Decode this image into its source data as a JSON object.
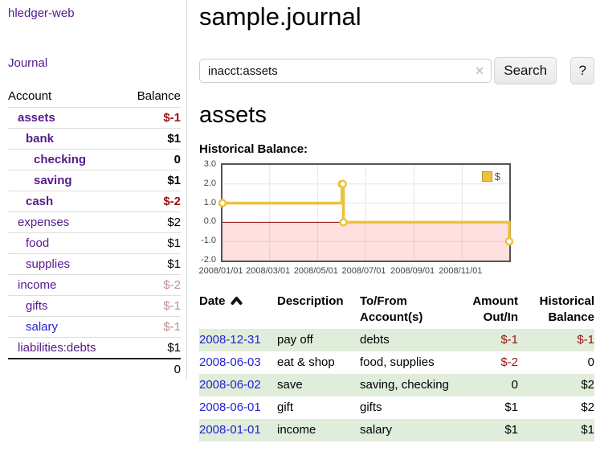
{
  "app": {
    "brand": "hledger-web",
    "nav_journal": "Journal"
  },
  "header": {
    "title": "sample.journal"
  },
  "search": {
    "value": "inacct:assets",
    "clear_icon": "✕",
    "search_label": "Search",
    "help_label": "?"
  },
  "sidebar": {
    "columns": {
      "account": "Account",
      "balance": "Balance"
    },
    "accounts": [
      {
        "name": "assets",
        "depth": 1,
        "balance": "$-1",
        "bold": true,
        "balance_style": "neg"
      },
      {
        "name": "bank",
        "depth": 2,
        "balance": "$1",
        "bold": true,
        "balance_style": "normal"
      },
      {
        "name": "checking",
        "depth": 3,
        "balance": "0",
        "bold": true,
        "balance_style": "normal"
      },
      {
        "name": "saving",
        "depth": 3,
        "balance": "$1",
        "bold": true,
        "balance_style": "normal"
      },
      {
        "name": "cash",
        "depth": 2,
        "balance": "$-2",
        "bold": true,
        "balance_style": "neg"
      },
      {
        "name": "expenses",
        "depth": 1,
        "balance": "$2",
        "bold": false,
        "balance_style": "normal"
      },
      {
        "name": "food",
        "depth": 2,
        "balance": "$1",
        "bold": false,
        "balance_style": "normal"
      },
      {
        "name": "supplies",
        "depth": 2,
        "balance": "$1",
        "bold": false,
        "balance_style": "normal"
      },
      {
        "name": "income",
        "depth": 1,
        "balance": "$-2",
        "bold": false,
        "balance_style": "neg-dim"
      },
      {
        "name": "gifts",
        "depth": 2,
        "balance": "$-1",
        "bold": false,
        "balance_style": "neg-dim"
      },
      {
        "name": "salary",
        "depth": 2,
        "balance": "$-1",
        "bold": false,
        "balance_style": "neg-dim",
        "link_style": "blue"
      },
      {
        "name": "liabilities:debts",
        "depth": 1,
        "balance": "$1",
        "bold": false,
        "balance_style": "normal"
      }
    ],
    "total": "0"
  },
  "account_page": {
    "heading": "assets",
    "chart_title": "Historical Balance:"
  },
  "chart_data": {
    "type": "line",
    "step": true,
    "title": "Historical Balance",
    "x_range": [
      "2008-01-01",
      "2008-12-31"
    ],
    "y_range": [
      -2,
      3
    ],
    "series": [
      {
        "name": "$",
        "color": "#edc240",
        "points": [
          [
            "2008-01-01",
            1
          ],
          [
            "2008-06-01",
            2
          ],
          [
            "2008-06-02",
            2
          ],
          [
            "2008-06-03",
            0
          ],
          [
            "2008-12-31",
            -1
          ]
        ]
      }
    ],
    "y_ticks": [
      "3.0",
      "2.0",
      "1.0",
      "0.0",
      "-1.0",
      "-2.0"
    ],
    "x_ticks": [
      "2008/01/01",
      "2008/03/01",
      "2008/05/01",
      "2008/07/01",
      "2008/09/01",
      "2008/11/01"
    ],
    "legend": {
      "label": "$",
      "position": "top-right"
    },
    "grid": true,
    "colors": {
      "line": "#edc240",
      "negative_fill": "rgba(255,0,0,0.12)",
      "zero_line": "#8b0000",
      "grid": "#e6e6e6",
      "border": "#555555"
    }
  },
  "register": {
    "columns": {
      "date": "Date",
      "description": "Description",
      "accounts": "To/From Account(s)",
      "amount": "Amount Out/In",
      "balance": "Historical Balance"
    },
    "rows": [
      {
        "date": "2008-12-31",
        "description": "pay off",
        "accounts": "debts",
        "amount": "$-1",
        "balance": "$-1",
        "amount_style": "neg",
        "balance_style": "neg"
      },
      {
        "date": "2008-06-03",
        "description": "eat & shop",
        "accounts": "food, supplies",
        "amount": "$-2",
        "balance": "0",
        "amount_style": "neg",
        "balance_style": "normal"
      },
      {
        "date": "2008-06-02",
        "description": "save",
        "accounts": "saving, checking",
        "amount": "0",
        "balance": "$2",
        "amount_style": "normal",
        "balance_style": "normal"
      },
      {
        "date": "2008-06-01",
        "description": "gift",
        "accounts": "gifts",
        "amount": "$1",
        "balance": "$2",
        "amount_style": "normal",
        "balance_style": "normal"
      },
      {
        "date": "2008-01-01",
        "description": "income",
        "accounts": "salary",
        "amount": "$1",
        "balance": "$1",
        "amount_style": "normal",
        "balance_style": "normal"
      }
    ]
  }
}
